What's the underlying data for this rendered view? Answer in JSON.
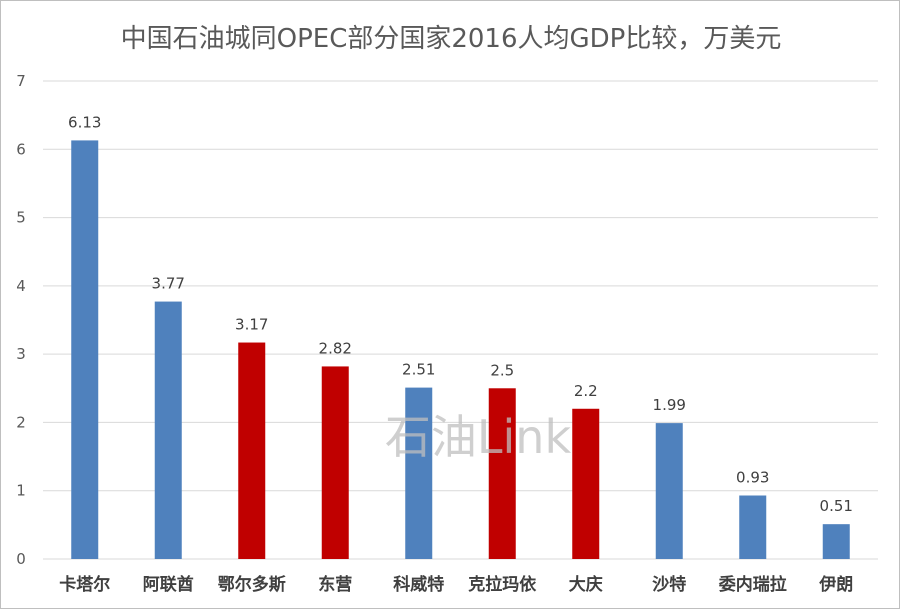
{
  "chart_data": {
    "type": "bar",
    "title": "中国石油城同OPEC部分国家2016人均GDP比较，万美元",
    "categories": [
      "卡塔尔",
      "阿联酋",
      "鄂尔多斯",
      "东营",
      "科威特",
      "克拉玛依",
      "大庆",
      "沙特",
      "委内瑞拉",
      "伊朗"
    ],
    "values": [
      6.13,
      3.77,
      3.17,
      2.82,
      2.51,
      2.5,
      2.2,
      1.99,
      0.93,
      0.51
    ],
    "value_labels": [
      "6.13",
      "3.77",
      "3.17",
      "2.82",
      "2.51",
      "2.5",
      "2.2",
      "1.99",
      "0.93",
      "0.51"
    ],
    "groups": [
      "opec",
      "opec",
      "china",
      "china",
      "opec",
      "china",
      "china",
      "opec",
      "opec",
      "opec"
    ],
    "colors": {
      "opec": "#4f81bd",
      "china": "#c00000"
    },
    "ylim": [
      0,
      7
    ],
    "yticks": [
      "0",
      "1",
      "2",
      "3",
      "4",
      "5",
      "6",
      "7"
    ],
    "xlabel": "",
    "ylabel": "",
    "grid": true,
    "legend": "none"
  },
  "watermark": "石油Link"
}
